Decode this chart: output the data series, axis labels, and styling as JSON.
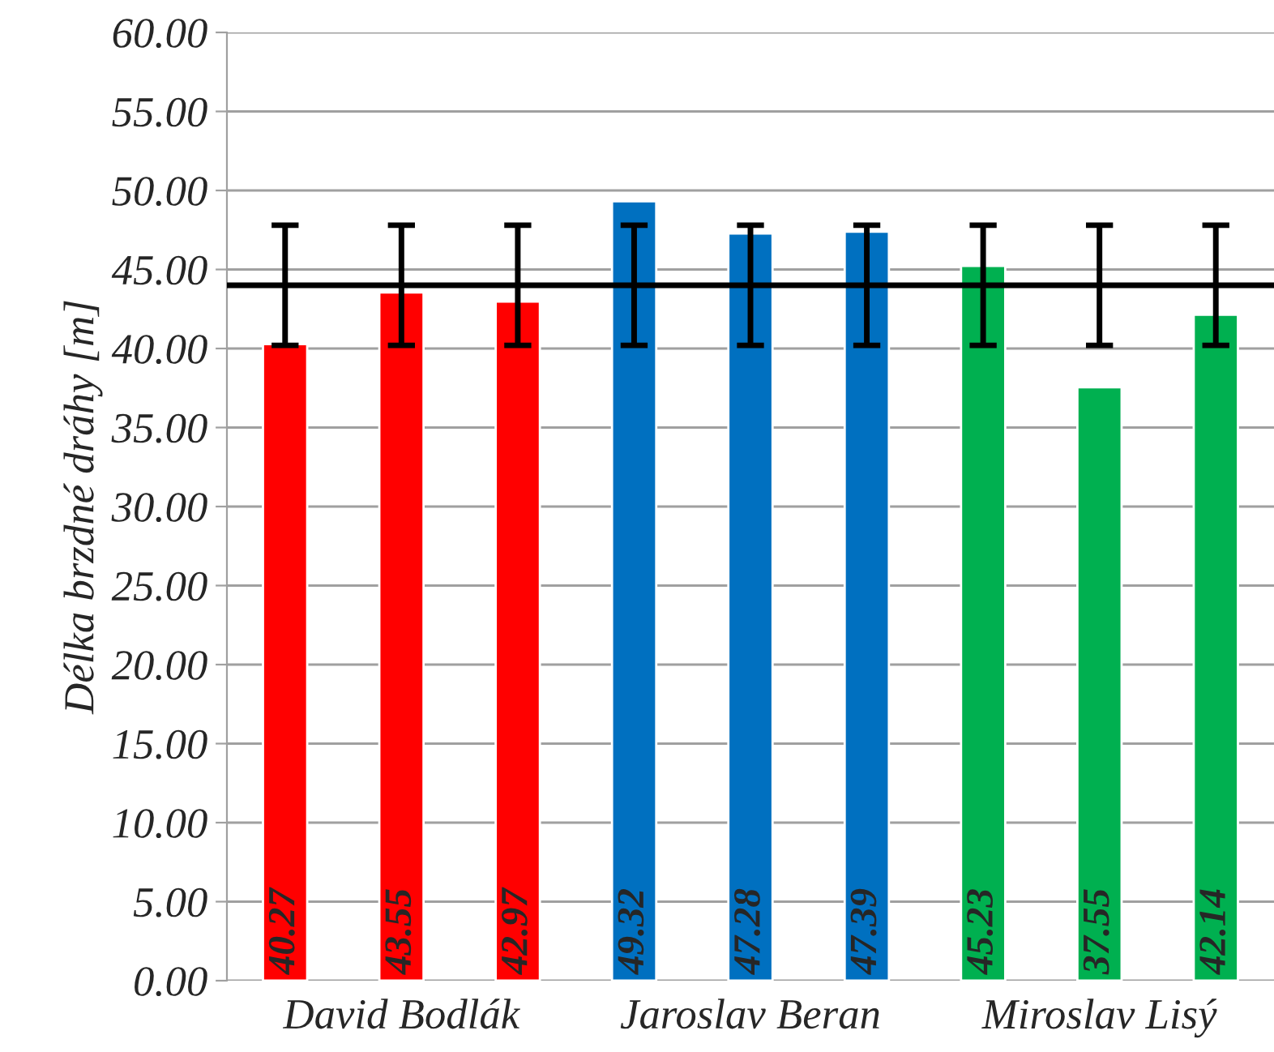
{
  "chart_data": {
    "type": "bar",
    "ylabel": "Délka brzdné dráhy [m]",
    "categories": [
      null,
      "David Bodlák",
      null,
      null,
      "Jaroslav Beran",
      null,
      null,
      "Miroslav Lisý",
      null
    ],
    "values": [
      40.27,
      43.55,
      42.97,
      49.32,
      47.28,
      47.39,
      45.23,
      37.55,
      42.14
    ],
    "colors": [
      "#ff0000",
      "#ff0000",
      "#ff0000",
      "#0070c0",
      "#0070c0",
      "#0070c0",
      "#00b050",
      "#00b050",
      "#00b050"
    ],
    "errors": [
      [
        40.2,
        47.8
      ],
      [
        40.2,
        47.8
      ],
      [
        40.2,
        47.8
      ],
      [
        40.2,
        47.8
      ],
      [
        40.2,
        47.8
      ],
      [
        40.2,
        47.8
      ],
      [
        40.2,
        47.8
      ],
      [
        40.2,
        47.8
      ],
      [
        40.2,
        47.8
      ]
    ],
    "data_labels": true,
    "ylim": [
      0,
      60
    ],
    "yticks": [
      {
        "value": 0,
        "label": "0.00"
      },
      {
        "value": 5,
        "label": "5.00"
      },
      {
        "value": 10,
        "label": "10.00"
      },
      {
        "value": 15,
        "label": "15.00"
      },
      {
        "value": 20,
        "label": "20.00"
      },
      {
        "value": 25,
        "label": "25.00"
      },
      {
        "value": 30,
        "label": "30.00"
      },
      {
        "value": 35,
        "label": "35.00"
      },
      {
        "value": 40,
        "label": "40.00"
      },
      {
        "value": 45,
        "label": "45.00"
      },
      {
        "value": 50,
        "label": "50.00"
      },
      {
        "value": 55,
        "label": "55.00"
      },
      {
        "value": 60,
        "label": "60.00"
      }
    ],
    "ref_lines": [
      {
        "axis": "y",
        "value": 44.0,
        "color": "#000000",
        "line_style": "solid"
      }
    ],
    "grid": "y"
  }
}
